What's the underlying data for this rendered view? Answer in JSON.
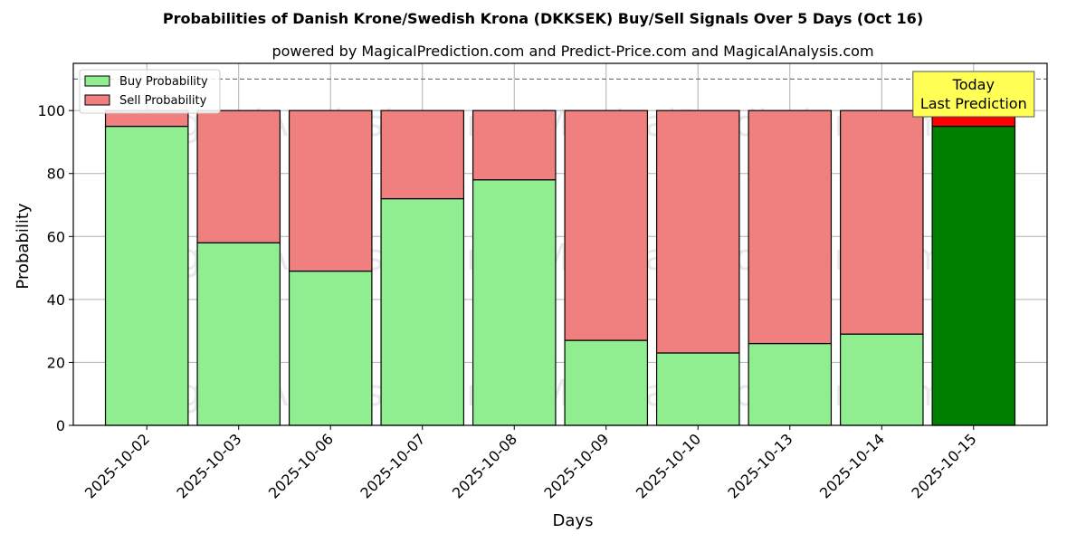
{
  "chart_data": {
    "type": "bar",
    "stacked": true,
    "title": "Probabilities of Danish Krone/Swedish Krona (DKKSEK) Buy/Sell Signals Over 5 Days (Oct 16)",
    "subtitle": "powered by MagicalPrediction.com and Predict-Price.com and MagicalAnalysis.com",
    "xlabel": "Days",
    "ylabel": "Probability",
    "ylim": [
      0,
      115
    ],
    "yticks": [
      0,
      20,
      40,
      60,
      80,
      100
    ],
    "reference_line": 110,
    "grid": true,
    "legend_position": "top-left",
    "categories": [
      "2025-10-02",
      "2025-10-03",
      "2025-10-06",
      "2025-10-07",
      "2025-10-08",
      "2025-10-09",
      "2025-10-10",
      "2025-10-13",
      "2025-10-14",
      "2025-10-15"
    ],
    "series": [
      {
        "name": "Buy Probability",
        "color": "#90ee90",
        "last_color": "#008000",
        "values": [
          95,
          58,
          49,
          72,
          78,
          27,
          23,
          26,
          29,
          95
        ]
      },
      {
        "name": "Sell Probability",
        "color": "#f08080",
        "last_color": "#ff0000",
        "values": [
          5,
          42,
          51,
          28,
          22,
          73,
          77,
          74,
          71,
          5
        ]
      }
    ],
    "annotation": {
      "lines": [
        "Today",
        "Last Prediction"
      ],
      "category": "2025-10-15",
      "background": "#ffff55"
    },
    "watermarks": [
      "MagicalAnalysis.com",
      "MagicalPrediction.com"
    ]
  }
}
